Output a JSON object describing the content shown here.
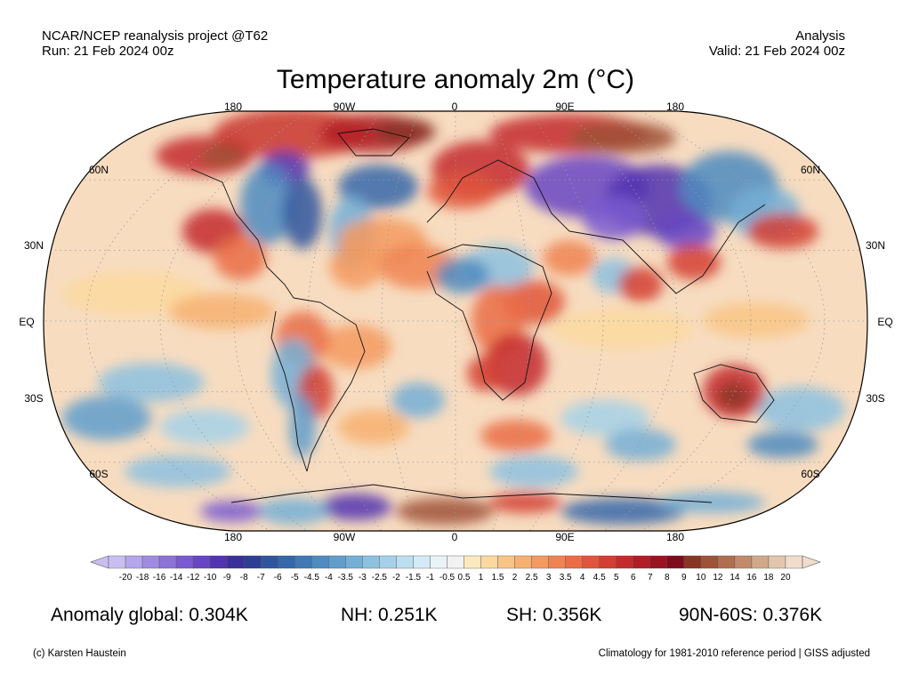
{
  "header": {
    "left_line1": "NCAR/NCEP reanalysis project @T62",
    "left_line2": "Run: 21 Feb 2024 00z",
    "right_line1": "Analysis",
    "right_line2": "Valid: 21 Feb 2024 00z"
  },
  "title": "Temperature anomaly 2m (°C)",
  "lon_labels_top": [
    "180",
    "90W",
    "0",
    "90E",
    "180"
  ],
  "lon_labels_bottom": [
    "180",
    "90W",
    "0",
    "90E",
    "180"
  ],
  "lat_labels": [
    "60N",
    "30N",
    "EQ",
    "30S",
    "60S"
  ],
  "colorbar": {
    "ticks": [
      "-20",
      "-18",
      "-16",
      "-14",
      "-12",
      "-10",
      "-9",
      "-8",
      "-7",
      "-6",
      "-5",
      "-4.5",
      "-4",
      "-3.5",
      "-3",
      "-2.5",
      "-2",
      "-1.5",
      "-1",
      "-0.5",
      "0.5",
      "1",
      "1.5",
      "2",
      "2.5",
      "3",
      "3.5",
      "4",
      "4.5",
      "5",
      "6",
      "7",
      "8",
      "9",
      "10",
      "12",
      "14",
      "16",
      "18",
      "20"
    ],
    "colors": [
      "#c8bff0",
      "#b4a6ea",
      "#a08be2",
      "#8d72da",
      "#7a5ad0",
      "#6745c3",
      "#5233b0",
      "#3b2f9c",
      "#2d3f95",
      "#2f559f",
      "#3567aa",
      "#4079b5",
      "#4e8bc1",
      "#5f9dcc",
      "#74afd6",
      "#8cc1e0",
      "#a4d1e9",
      "#bcdff0",
      "#d3ebf6",
      "#e9f4f9",
      "#f2f2f2",
      "#fce9bf",
      "#fbd99e",
      "#f9c585",
      "#f7b070",
      "#f49a5f",
      "#f08451",
      "#ea6d46",
      "#e0553b",
      "#d43e33",
      "#c42b2d",
      "#b11d27",
      "#991321",
      "#7f0b1a",
      "#8a3424",
      "#9e5238",
      "#b06e4f",
      "#c18b6b",
      "#d2a88a",
      "#e2c5ac",
      "#f0ddcc"
    ]
  },
  "stats": {
    "global": "Anomaly global: 0.304K",
    "nh": "NH: 0.251K",
    "sh": "SH: 0.356K",
    "arctic": "90N-60S: 0.376K"
  },
  "footer": {
    "left": "(c) Karsten Haustein",
    "right": "Climatology for 1981-2010 reference period | GISS adjusted"
  }
}
